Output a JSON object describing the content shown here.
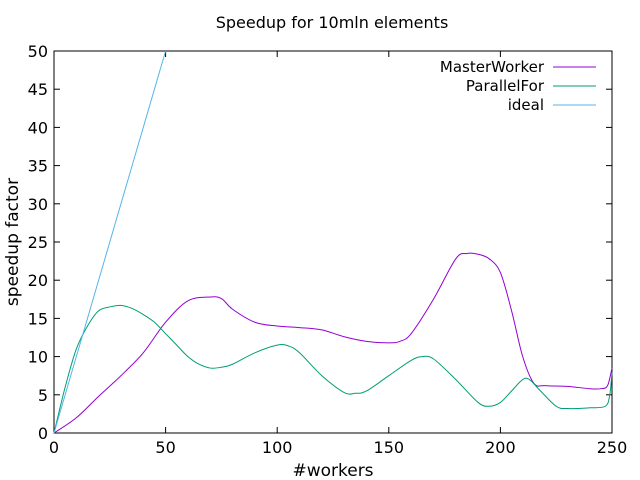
{
  "chart_data": {
    "type": "line",
    "title": "Speedup for 10mln elements",
    "xlabel": "#workers",
    "ylabel": "speedup factor",
    "xlim": [
      0,
      250
    ],
    "ylim": [
      0,
      50
    ],
    "xticks": [
      0,
      50,
      100,
      150,
      200,
      250
    ],
    "yticks": [
      0,
      5,
      10,
      15,
      20,
      25,
      30,
      35,
      40,
      45,
      50
    ],
    "grid": false,
    "legend_position": "top-right",
    "series": [
      {
        "name": "MasterWorker",
        "color": "#9400d3",
        "x": [
          0,
          10,
          20,
          30,
          40,
          50,
          60,
          70,
          75,
          80,
          90,
          100,
          110,
          120,
          130,
          140,
          150,
          155,
          160,
          170,
          180,
          185,
          190,
          195,
          200,
          205,
          210,
          215,
          220,
          230,
          240,
          245,
          248,
          250
        ],
        "y": [
          0,
          2,
          4.8,
          7.5,
          10.5,
          14.5,
          17.3,
          17.8,
          17.6,
          16.2,
          14.5,
          14.0,
          13.8,
          13.5,
          12.6,
          12.0,
          11.8,
          12.0,
          13.0,
          17.5,
          22.8,
          23.5,
          23.4,
          22.8,
          21.0,
          16.0,
          10.0,
          6.5,
          6.2,
          6.1,
          5.8,
          5.8,
          6.2,
          8.5
        ]
      },
      {
        "name": "ParallelFor",
        "color": "#009e73",
        "x": [
          0,
          5,
          10,
          15,
          20,
          25,
          30,
          35,
          40,
          45,
          50,
          55,
          60,
          65,
          70,
          75,
          80,
          90,
          100,
          105,
          110,
          120,
          130,
          135,
          140,
          150,
          160,
          165,
          170,
          180,
          190,
          195,
          200,
          205,
          210,
          213,
          218,
          225,
          230,
          240,
          247,
          249,
          250
        ],
        "y": [
          0,
          6,
          11,
          14,
          16,
          16.5,
          16.7,
          16.3,
          15.5,
          14.5,
          13.0,
          11.5,
          10,
          9,
          8.5,
          8.6,
          9.0,
          10.5,
          11.5,
          11.4,
          10.5,
          7.5,
          5.3,
          5.2,
          5.5,
          7.5,
          9.5,
          10.0,
          9.7,
          7.0,
          4.0,
          3.5,
          4.0,
          5.5,
          7.0,
          7.0,
          5.5,
          3.5,
          3.2,
          3.3,
          3.5,
          5.0,
          8.0
        ]
      },
      {
        "name": "ideal",
        "color": "#56b4e9",
        "x": [
          0,
          50
        ],
        "y": [
          0,
          50
        ]
      }
    ]
  }
}
